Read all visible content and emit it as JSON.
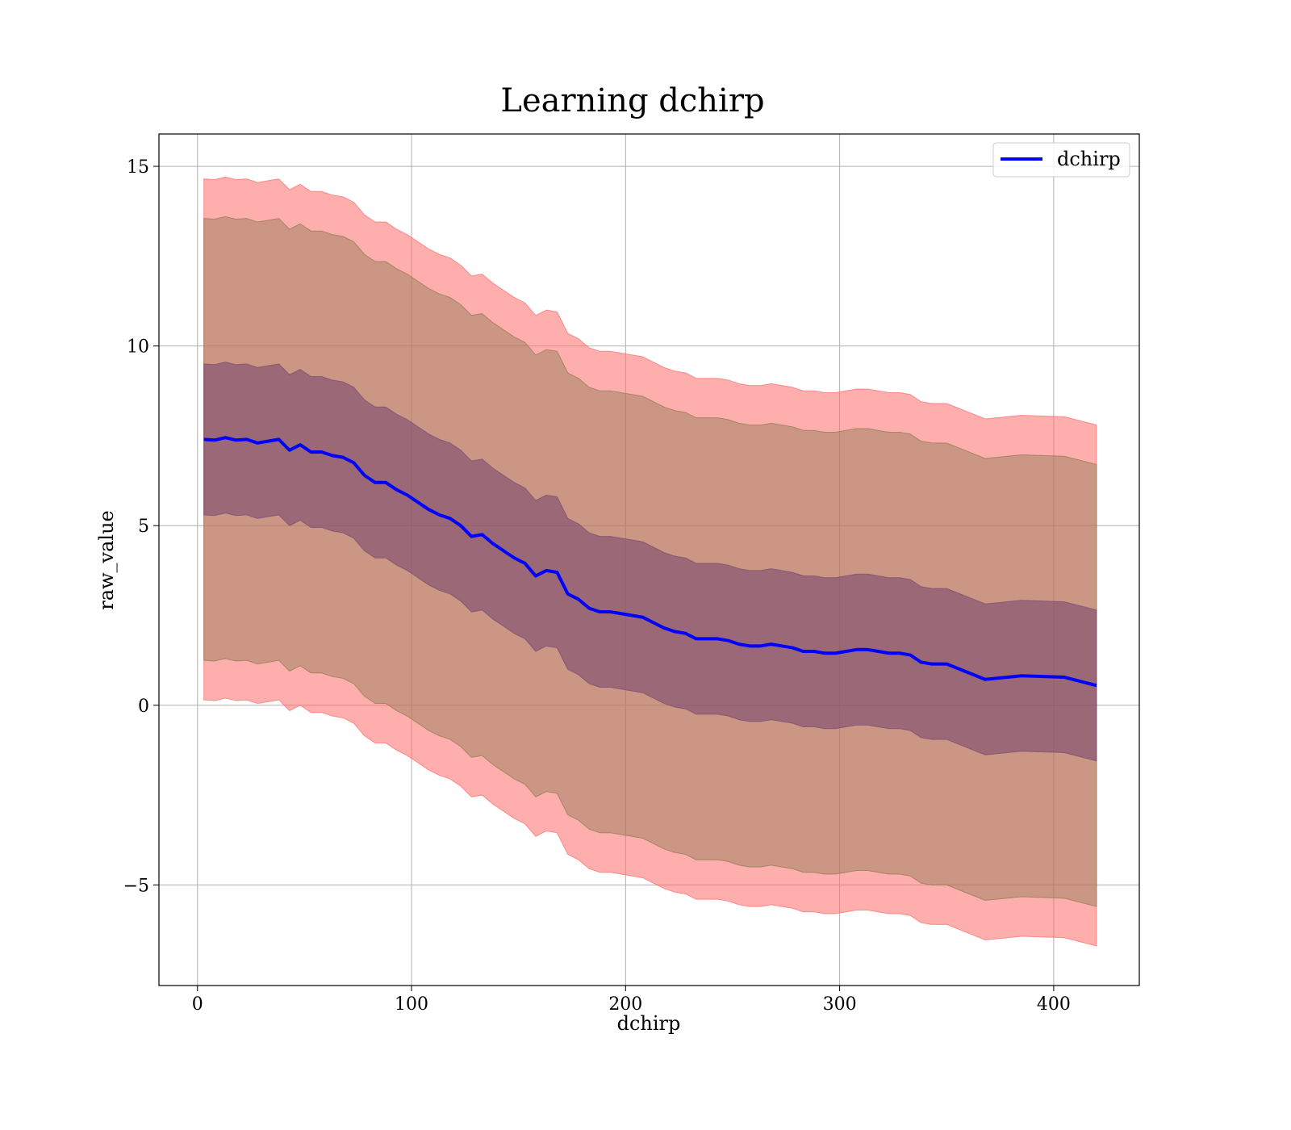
{
  "chart_data": {
    "type": "line",
    "title": "Learning dchirp",
    "xlabel": "dchirp",
    "ylabel": "raw_value",
    "xlim": [
      -18,
      440
    ],
    "ylim": [
      -7.8,
      15.9
    ],
    "x_ticks": [
      0,
      100,
      200,
      300,
      400
    ],
    "x_tick_labels": [
      "0",
      "100",
      "200",
      "300",
      "400"
    ],
    "y_ticks": [
      -5,
      0,
      5,
      10,
      15
    ],
    "y_tick_labels": [
      "−5",
      "0",
      "5",
      "10",
      "15"
    ],
    "grid": true,
    "legend_position": "top-right",
    "series": [
      {
        "name": "dchirp",
        "color": "#0000ff",
        "x": [
          3,
          8,
          13,
          18,
          23,
          28,
          33,
          38,
          43,
          48,
          53,
          58,
          63,
          68,
          73,
          78,
          83,
          88,
          93,
          98,
          103,
          108,
          113,
          118,
          123,
          128,
          133,
          138,
          143,
          148,
          153,
          158,
          163,
          168,
          173,
          178,
          183,
          188,
          193,
          198,
          203,
          208,
          213,
          218,
          223,
          228,
          233,
          238,
          243,
          248,
          253,
          258,
          263,
          268,
          273,
          278,
          283,
          288,
          293,
          298,
          303,
          308,
          313,
          318,
          323,
          328,
          333,
          338,
          343,
          350,
          368,
          385,
          405,
          420
        ],
        "y": [
          7.4,
          7.38,
          7.45,
          7.38,
          7.4,
          7.3,
          7.35,
          7.4,
          7.1,
          7.25,
          7.05,
          7.05,
          6.95,
          6.9,
          6.75,
          6.4,
          6.2,
          6.2,
          6.0,
          5.85,
          5.65,
          5.45,
          5.3,
          5.2,
          5.0,
          4.7,
          4.75,
          4.5,
          4.3,
          4.1,
          3.95,
          3.6,
          3.75,
          3.7,
          3.1,
          2.95,
          2.7,
          2.6,
          2.6,
          2.55,
          2.5,
          2.45,
          2.3,
          2.15,
          2.05,
          2.0,
          1.85,
          1.85,
          1.85,
          1.8,
          1.7,
          1.65,
          1.65,
          1.7,
          1.65,
          1.6,
          1.5,
          1.5,
          1.45,
          1.45,
          1.5,
          1.55,
          1.55,
          1.5,
          1.45,
          1.45,
          1.4,
          1.2,
          1.15,
          1.15,
          0.72,
          0.82,
          0.78,
          0.55
        ]
      }
    ],
    "bands": [
      {
        "name": "",
        "color": "#ff6b6b",
        "opacity": 0.55,
        "delta": 7.25
      },
      {
        "name": "",
        "color": "#8b7a50",
        "opacity": 0.45,
        "delta": 6.15
      },
      {
        "name": "",
        "color": "#7a4a70",
        "opacity": 0.6,
        "delta": 2.1
      }
    ]
  }
}
